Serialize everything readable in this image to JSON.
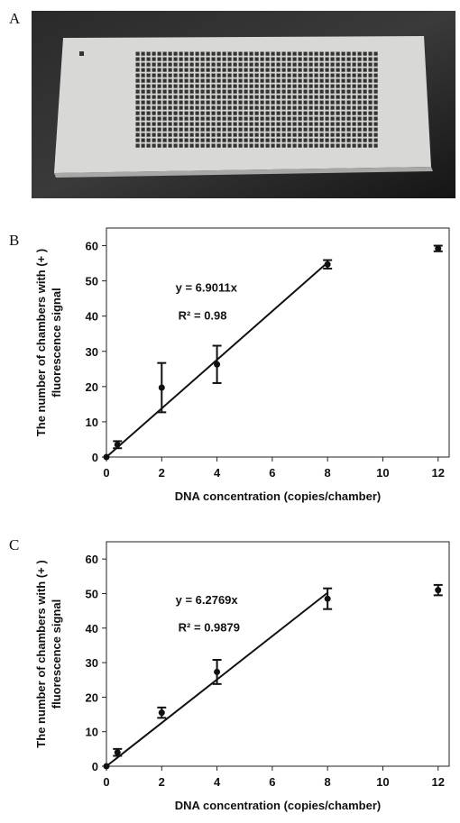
{
  "panel_labels": [
    "A",
    "B",
    "C"
  ],
  "chart_data": [
    {
      "type": "scatter",
      "x_label": "DNA concentration (copies/chamber)",
      "y_label": [
        "The number of chambers with (+ )",
        "fluorescence signal"
      ],
      "x": [
        0,
        0.4,
        2,
        4,
        8,
        12
      ],
      "values": [
        0,
        3.5,
        19.7,
        26.3,
        54.7,
        59.2
      ],
      "errors": [
        0,
        1,
        7,
        5.3,
        1.2,
        0.8
      ],
      "fit_slope": 6.9011,
      "fit_xlim": [
        0,
        8
      ],
      "fit_label": "y =  6.9011x",
      "r2_label": "R² =  0.98",
      "xlim": [
        0,
        12.4
      ],
      "ylim": [
        0,
        65
      ],
      "xticks": [
        0,
        2,
        4,
        6,
        8,
        10,
        12
      ],
      "yticks": [
        0,
        10,
        20,
        30,
        40,
        50,
        60
      ],
      "color": "#111111"
    },
    {
      "type": "scatter",
      "x_label": "DNA concentration (copies/chamber)",
      "y_label": [
        "The number of chambers with (+ )",
        "fluorescence signal"
      ],
      "x": [
        0,
        0.4,
        2,
        4,
        8,
        12
      ],
      "values": [
        0,
        4,
        15.5,
        27.3,
        48.5,
        51
      ],
      "errors": [
        0,
        1,
        1.5,
        3.5,
        3,
        1.5
      ],
      "fit_slope": 6.2769,
      "fit_xlim": [
        0,
        8
      ],
      "fit_label": "y =  6.2769x",
      "r2_label": "R² =  0.9879",
      "xlim": [
        0,
        12.4
      ],
      "ylim": [
        0,
        65
      ],
      "xticks": [
        0,
        2,
        4,
        6,
        8,
        10,
        12
      ],
      "yticks": [
        0,
        10,
        20,
        30,
        40,
        50,
        60
      ],
      "color": "#111111"
    }
  ]
}
